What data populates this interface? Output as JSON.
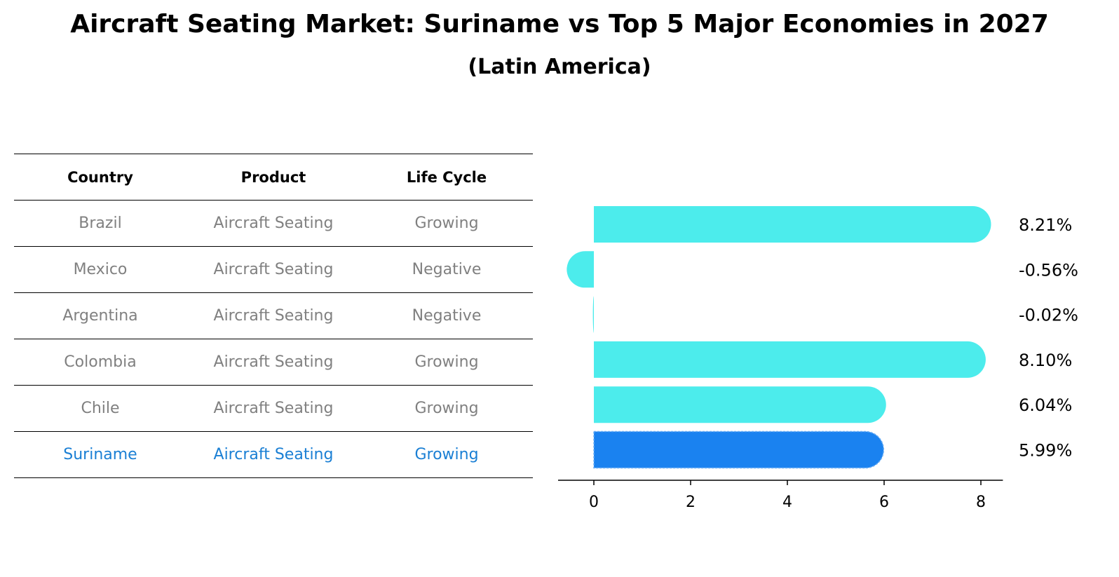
{
  "title": "Aircraft Seating Market: Suriname vs Top 5 Major Economies in 2027",
  "subtitle": "(Latin America)",
  "table": {
    "headers": [
      "Country",
      "Product",
      "Life Cycle"
    ],
    "rows": [
      {
        "country": "Brazil",
        "product": "Aircraft Seating",
        "life_cycle": "Growing",
        "highlight": false
      },
      {
        "country": "Mexico",
        "product": "Aircraft Seating",
        "life_cycle": "Negative",
        "highlight": false
      },
      {
        "country": "Argentina",
        "product": "Aircraft Seating",
        "life_cycle": "Negative",
        "highlight": false
      },
      {
        "country": "Colombia",
        "product": "Aircraft Seating",
        "life_cycle": "Growing",
        "highlight": false
      },
      {
        "country": "Chile",
        "product": "Aircraft Seating",
        "life_cycle": "Growing",
        "highlight": false
      },
      {
        "country": "Suriname",
        "product": "Aircraft Seating",
        "life_cycle": "Growing",
        "highlight": true
      }
    ]
  },
  "colors": {
    "bar": "#4cecec",
    "highlight_bar": "#1a82f0",
    "highlight_text": "#1a7fd4",
    "muted_text": "#808080"
  },
  "chart_data": {
    "type": "bar",
    "orientation": "horizontal",
    "categories": [
      "Brazil",
      "Mexico",
      "Argentina",
      "Colombia",
      "Chile",
      "Suriname"
    ],
    "values": [
      8.21,
      -0.56,
      -0.02,
      8.1,
      6.04,
      5.99
    ],
    "value_labels": [
      "8.21%",
      "-0.56%",
      "-0.02%",
      "8.10%",
      "6.04%",
      "5.99%"
    ],
    "highlight_index": 5,
    "xlim": [
      -1,
      8.6
    ],
    "xticks": [
      0,
      2,
      4,
      6,
      8
    ],
    "xlabel": "",
    "ylabel": "",
    "grid": false
  }
}
